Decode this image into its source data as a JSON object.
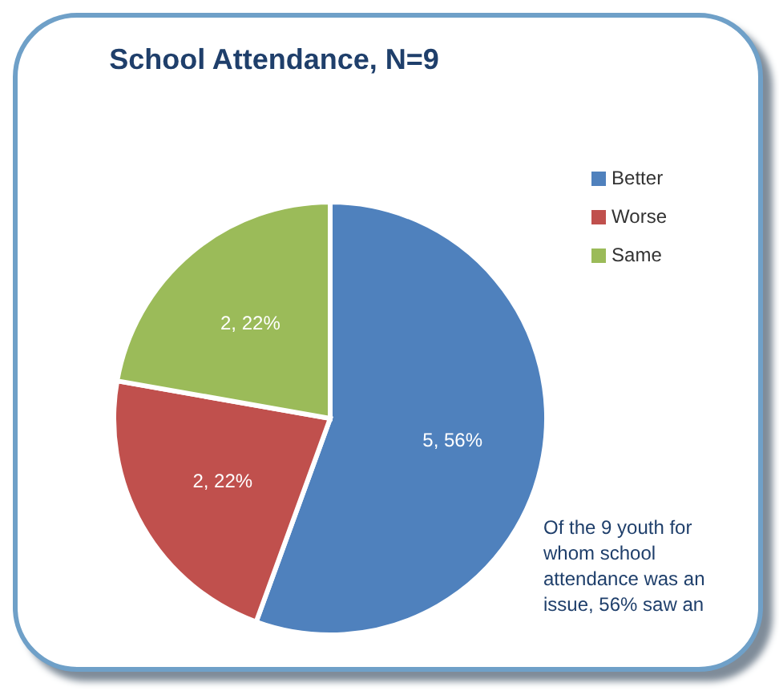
{
  "chart_data": {
    "type": "pie",
    "title": "School Attendance, N=9",
    "categories": [
      "Better",
      "Worse",
      "Same"
    ],
    "values": [
      5,
      2,
      2
    ],
    "colors": [
      "#4f81bd",
      "#c0504d",
      "#9bbb59"
    ],
    "value_labels": [
      "5, 56%",
      "2, 22%",
      "2, 22%"
    ],
    "legend": "right",
    "annotations": [
      "Of the 9 youth for whom school attendance was an issue, 56% saw an"
    ]
  }
}
